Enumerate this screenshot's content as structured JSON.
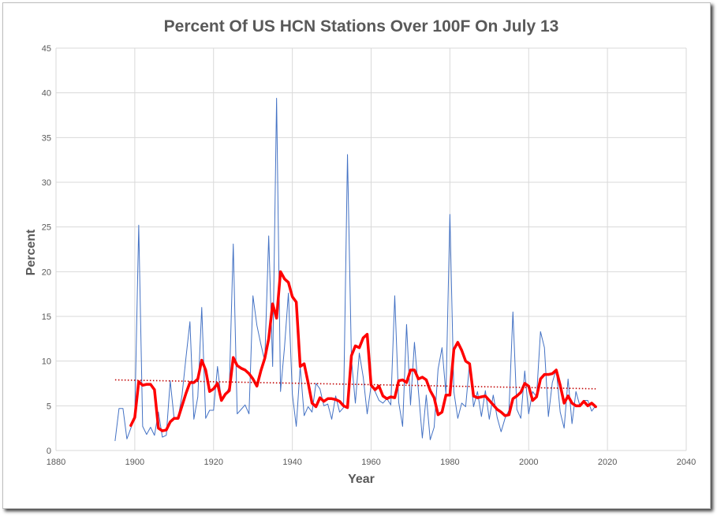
{
  "chart_data": {
    "type": "line",
    "title": "Percent Of US HCN Stations Over 100F On July 13",
    "xlabel": "Year",
    "ylabel": "Percent",
    "xlim": [
      1880,
      2040
    ],
    "ylim": [
      0,
      45
    ],
    "xticks": [
      1880,
      1900,
      1920,
      1940,
      1960,
      1980,
      2000,
      2020,
      2040
    ],
    "yticks": [
      0,
      5,
      10,
      15,
      20,
      25,
      30,
      35,
      40,
      45
    ],
    "grid": true,
    "legend": "none",
    "series": [
      {
        "role": "annual",
        "color": "#4472c4",
        "points": [
          [
            1895,
            1.1
          ],
          [
            1896,
            4.7
          ],
          [
            1897,
            4.7
          ],
          [
            1898,
            1.3
          ],
          [
            1899,
            2.5
          ],
          [
            1900,
            3.8
          ],
          [
            1901,
            25.2
          ],
          [
            1902,
            2.7
          ],
          [
            1903,
            1.8
          ],
          [
            1904,
            2.6
          ],
          [
            1905,
            1.7
          ],
          [
            1906,
            4.3
          ],
          [
            1907,
            1.5
          ],
          [
            1908,
            1.7
          ],
          [
            1909,
            7.8
          ],
          [
            1910,
            3.5
          ],
          [
            1911,
            3.6
          ],
          [
            1912,
            6.2
          ],
          [
            1913,
            10.4
          ],
          [
            1914,
            14.4
          ],
          [
            1915,
            3.5
          ],
          [
            1916,
            6.0
          ],
          [
            1917,
            16.0
          ],
          [
            1918,
            3.6
          ],
          [
            1919,
            4.5
          ],
          [
            1920,
            4.5
          ],
          [
            1921,
            9.4
          ],
          [
            1922,
            5.5
          ],
          [
            1923,
            6.2
          ],
          [
            1924,
            7.1
          ],
          [
            1925,
            23.1
          ],
          [
            1926,
            4.1
          ],
          [
            1927,
            4.6
          ],
          [
            1928,
            5.1
          ],
          [
            1929,
            4.1
          ],
          [
            1930,
            17.3
          ],
          [
            1931,
            14.0
          ],
          [
            1932,
            11.9
          ],
          [
            1933,
            10.0
          ],
          [
            1934,
            24.0
          ],
          [
            1935,
            9.4
          ],
          [
            1936,
            39.4
          ],
          [
            1937,
            6.6
          ],
          [
            1938,
            11.5
          ],
          [
            1939,
            17.6
          ],
          [
            1940,
            6.3
          ],
          [
            1941,
            2.7
          ],
          [
            1942,
            9.4
          ],
          [
            1943,
            3.9
          ],
          [
            1944,
            4.9
          ],
          [
            1945,
            4.3
          ],
          [
            1946,
            7.5
          ],
          [
            1947,
            6.9
          ],
          [
            1948,
            5.0
          ],
          [
            1949,
            5.2
          ],
          [
            1950,
            3.5
          ],
          [
            1951,
            6.1
          ],
          [
            1952,
            4.3
          ],
          [
            1953,
            4.8
          ],
          [
            1954,
            33.1
          ],
          [
            1955,
            10.2
          ],
          [
            1956,
            5.3
          ],
          [
            1957,
            10.9
          ],
          [
            1958,
            8.2
          ],
          [
            1959,
            4.1
          ],
          [
            1960,
            7.3
          ],
          [
            1961,
            6.6
          ],
          [
            1962,
            5.6
          ],
          [
            1963,
            5.3
          ],
          [
            1964,
            5.8
          ],
          [
            1965,
            5.1
          ],
          [
            1966,
            17.3
          ],
          [
            1967,
            5.4
          ],
          [
            1968,
            2.7
          ],
          [
            1969,
            14.1
          ],
          [
            1970,
            5.1
          ],
          [
            1971,
            12.1
          ],
          [
            1972,
            6.7
          ],
          [
            1973,
            1.4
          ],
          [
            1974,
            6.2
          ],
          [
            1975,
            1.2
          ],
          [
            1976,
            2.6
          ],
          [
            1977,
            9.1
          ],
          [
            1978,
            11.5
          ],
          [
            1979,
            6.3
          ],
          [
            1980,
            26.4
          ],
          [
            1981,
            6.6
          ],
          [
            1982,
            3.6
          ],
          [
            1983,
            5.3
          ],
          [
            1984,
            4.9
          ],
          [
            1985,
            9.8
          ],
          [
            1986,
            4.9
          ],
          [
            1987,
            6.6
          ],
          [
            1988,
            3.8
          ],
          [
            1989,
            6.7
          ],
          [
            1990,
            3.5
          ],
          [
            1991,
            6.2
          ],
          [
            1992,
            3.7
          ],
          [
            1993,
            2.1
          ],
          [
            1994,
            3.6
          ],
          [
            1995,
            4.5
          ],
          [
            1996,
            15.5
          ],
          [
            1997,
            4.6
          ],
          [
            1998,
            3.6
          ],
          [
            1999,
            8.9
          ],
          [
            2000,
            4.1
          ],
          [
            2001,
            6.6
          ],
          [
            2002,
            6.0
          ],
          [
            2003,
            13.3
          ],
          [
            2004,
            11.5
          ],
          [
            2005,
            3.8
          ],
          [
            2006,
            7.6
          ],
          [
            2007,
            9.1
          ],
          [
            2008,
            4.3
          ],
          [
            2009,
            2.5
          ],
          [
            2010,
            8.0
          ],
          [
            2011,
            3.0
          ],
          [
            2012,
            6.6
          ],
          [
            2013,
            5.0
          ],
          [
            2014,
            5.6
          ],
          [
            2015,
            5.6
          ],
          [
            2016,
            4.4
          ],
          [
            2017,
            5.0
          ]
        ]
      },
      {
        "role": "moving-average",
        "color": "#ff0000",
        "points": [
          [
            1899,
            2.8
          ],
          [
            1900,
            3.7
          ],
          [
            1901,
            7.7
          ],
          [
            1902,
            7.3
          ],
          [
            1903,
            7.4
          ],
          [
            1904,
            7.4
          ],
          [
            1905,
            6.8
          ],
          [
            1906,
            2.5
          ],
          [
            1907,
            2.2
          ],
          [
            1908,
            2.3
          ],
          [
            1909,
            3.2
          ],
          [
            1910,
            3.6
          ],
          [
            1911,
            3.6
          ],
          [
            1912,
            5.0
          ],
          [
            1913,
            6.4
          ],
          [
            1914,
            7.6
          ],
          [
            1915,
            7.6
          ],
          [
            1916,
            8.0
          ],
          [
            1917,
            10.1
          ],
          [
            1918,
            9.0
          ],
          [
            1919,
            6.6
          ],
          [
            1920,
            6.9
          ],
          [
            1921,
            7.5
          ],
          [
            1922,
            5.6
          ],
          [
            1923,
            6.3
          ],
          [
            1924,
            6.7
          ],
          [
            1925,
            10.4
          ],
          [
            1926,
            9.5
          ],
          [
            1927,
            9.2
          ],
          [
            1928,
            9.0
          ],
          [
            1929,
            8.6
          ],
          [
            1930,
            8.0
          ],
          [
            1931,
            7.2
          ],
          [
            1932,
            8.9
          ],
          [
            1933,
            10.3
          ],
          [
            1934,
            12.5
          ],
          [
            1935,
            16.4
          ],
          [
            1936,
            14.8
          ],
          [
            1937,
            20.0
          ],
          [
            1938,
            19.2
          ],
          [
            1939,
            18.8
          ],
          [
            1940,
            17.2
          ],
          [
            1941,
            16.6
          ],
          [
            1942,
            9.4
          ],
          [
            1943,
            9.7
          ],
          [
            1944,
            7.6
          ],
          [
            1945,
            5.3
          ],
          [
            1946,
            4.9
          ],
          [
            1947,
            5.9
          ],
          [
            1948,
            5.5
          ],
          [
            1949,
            5.8
          ],
          [
            1950,
            5.8
          ],
          [
            1951,
            5.7
          ],
          [
            1952,
            5.5
          ],
          [
            1953,
            5.0
          ],
          [
            1954,
            4.8
          ],
          [
            1955,
            10.6
          ],
          [
            1956,
            11.7
          ],
          [
            1957,
            11.5
          ],
          [
            1958,
            12.6
          ],
          [
            1959,
            13.0
          ],
          [
            1960,
            7.3
          ],
          [
            1961,
            6.8
          ],
          [
            1962,
            7.2
          ],
          [
            1963,
            6.1
          ],
          [
            1964,
            5.8
          ],
          [
            1965,
            6.0
          ],
          [
            1966,
            5.9
          ],
          [
            1967,
            7.8
          ],
          [
            1968,
            7.9
          ],
          [
            1969,
            7.6
          ],
          [
            1970,
            9.0
          ],
          [
            1971,
            9.0
          ],
          [
            1972,
            8.0
          ],
          [
            1973,
            8.2
          ],
          [
            1974,
            7.9
          ],
          [
            1975,
            6.7
          ],
          [
            1976,
            5.9
          ],
          [
            1977,
            4.0
          ],
          [
            1978,
            4.3
          ],
          [
            1979,
            6.2
          ],
          [
            1980,
            6.2
          ],
          [
            1981,
            11.3
          ],
          [
            1982,
            12.1
          ],
          [
            1983,
            11.2
          ],
          [
            1984,
            10.0
          ],
          [
            1985,
            9.7
          ],
          [
            1986,
            6.1
          ],
          [
            1987,
            5.9
          ],
          [
            1988,
            6.0
          ],
          [
            1989,
            6.1
          ],
          [
            1990,
            5.6
          ],
          [
            1991,
            5.1
          ],
          [
            1992,
            4.6
          ],
          [
            1993,
            4.3
          ],
          [
            1994,
            3.9
          ],
          [
            1995,
            4.0
          ],
          [
            1996,
            5.8
          ],
          [
            1997,
            6.1
          ],
          [
            1998,
            6.5
          ],
          [
            1999,
            7.5
          ],
          [
            2000,
            7.2
          ],
          [
            2001,
            5.6
          ],
          [
            2002,
            6.0
          ],
          [
            2003,
            8.0
          ],
          [
            2004,
            8.5
          ],
          [
            2005,
            8.5
          ],
          [
            2006,
            8.6
          ],
          [
            2007,
            9.0
          ],
          [
            2008,
            7.3
          ],
          [
            2009,
            5.3
          ],
          [
            2010,
            6.1
          ],
          [
            2011,
            5.3
          ],
          [
            2012,
            5.0
          ],
          [
            2013,
            5.0
          ],
          [
            2014,
            5.5
          ],
          [
            2015,
            5.0
          ],
          [
            2016,
            5.3
          ],
          [
            2017,
            4.9
          ]
        ]
      },
      {
        "role": "linear-trend",
        "color": "#c00000",
        "style": "dotted",
        "points": [
          [
            1895,
            7.9
          ],
          [
            2017,
            6.9
          ]
        ]
      }
    ]
  },
  "colors": {
    "title": "#595959",
    "grid": "#d9d9d9",
    "tick_label": "#595959"
  }
}
